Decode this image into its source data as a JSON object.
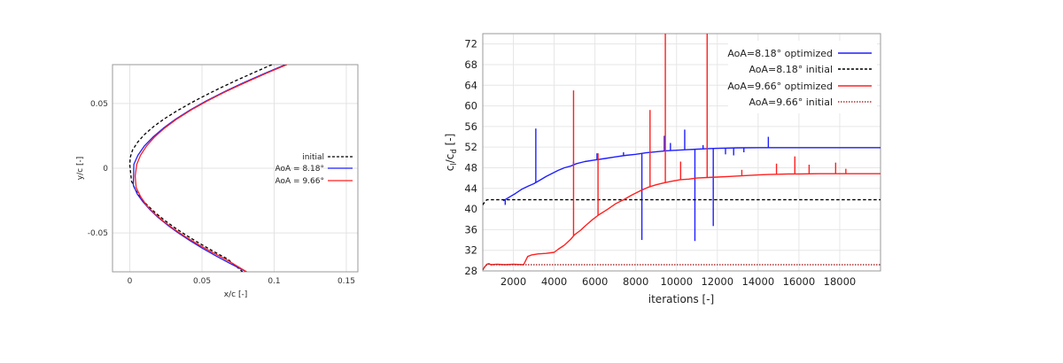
{
  "chart_data": [
    {
      "type": "line",
      "title": "",
      "xlabel": "x/c [-]",
      "ylabel": "y/c [-]",
      "xlim": [
        -0.012,
        0.158
      ],
      "ylim": [
        -0.08,
        0.08
      ],
      "x_ticks": [
        {
          "v": 0,
          "label": "0"
        },
        {
          "v": 0.05,
          "label": "0.05"
        },
        {
          "v": 0.1,
          "label": "0.1"
        },
        {
          "v": 0.15,
          "label": "0.15"
        }
      ],
      "y_ticks": [
        {
          "v": 0.05,
          "label": "0.05"
        },
        {
          "v": 0,
          "label": "0"
        },
        {
          "v": -0.05,
          "label": "-0.05"
        }
      ],
      "grid": true,
      "legend": "right",
      "series": [
        {
          "name": "initial",
          "color": "#000000",
          "dash": "dashed",
          "x": [
            0.0984,
            0.0862,
            0.0742,
            0.0627,
            0.0518,
            0.0416,
            0.0322,
            0.0237,
            0.0163,
            0.0101,
            0.0053,
            0.0019,
            0.0002,
            0.0,
            0.0012,
            0.0035,
            0.0069,
            0.0116,
            0.0173,
            0.0238,
            0.0312,
            0.0394,
            0.0482,
            0.0576,
            0.0676,
            0.0781
          ],
          "y": [
            0.08,
            0.074,
            0.068,
            0.062,
            0.056,
            0.05,
            0.044,
            0.038,
            0.032,
            0.026,
            0.02,
            0.014,
            0.008,
            0.002,
            -0.01,
            -0.016,
            -0.022,
            -0.028,
            -0.034,
            -0.04,
            -0.046,
            -0.052,
            -0.058,
            -0.064,
            -0.07,
            -0.08
          ]
        },
        {
          "name": "AoA = 8.18°",
          "color": "#1f1fff",
          "dash": "solid",
          "x": [
            0.1078,
            0.093,
            0.0787,
            0.0654,
            0.053,
            0.0418,
            0.0319,
            0.0233,
            0.016,
            0.01,
            0.0056,
            0.0028,
            0.0024,
            0.0052,
            0.0091,
            0.0139,
            0.0196,
            0.0262,
            0.0336,
            0.0418,
            0.0506,
            0.0601,
            0.0702,
            0.0808
          ],
          "y": [
            0.08,
            0.073,
            0.066,
            0.059,
            0.052,
            0.045,
            0.038,
            0.031,
            0.024,
            0.017,
            0.01,
            0.003,
            -0.013,
            -0.02,
            -0.026,
            -0.032,
            -0.038,
            -0.044,
            -0.05,
            -0.056,
            -0.062,
            -0.068,
            -0.074,
            -0.08
          ]
        },
        {
          "name": "AoA = 9.66°",
          "color": "#ff2020",
          "dash": "solid",
          "x": [
            0.1088,
            0.094,
            0.0797,
            0.0662,
            0.0538,
            0.0425,
            0.0326,
            0.0241,
            0.017,
            0.0115,
            0.0074,
            0.0048,
            0.0037,
            0.0044,
            0.0075,
            0.0118,
            0.0171,
            0.0234,
            0.0306,
            0.0387,
            0.0476,
            0.0572,
            0.0675,
            0.081
          ],
          "y": [
            0.08,
            0.073,
            0.066,
            0.059,
            0.052,
            0.045,
            0.038,
            0.031,
            0.024,
            0.017,
            0.01,
            0.003,
            -0.006,
            -0.015,
            -0.022,
            -0.029,
            -0.035,
            -0.041,
            -0.047,
            -0.053,
            -0.059,
            -0.065,
            -0.071,
            -0.08
          ]
        }
      ]
    },
    {
      "type": "line",
      "title": "",
      "xlabel": "iterations [-]",
      "ylabel": "cl/cd [-]",
      "xlim": [
        500,
        20000
      ],
      "ylim": [
        28,
        74
      ],
      "x_ticks": [
        2000,
        4000,
        6000,
        8000,
        10000,
        12000,
        14000,
        16000,
        18000
      ],
      "y_ticks": [
        28,
        32,
        36,
        40,
        44,
        48,
        52,
        56,
        60,
        64,
        68,
        72
      ],
      "grid": true,
      "legend": "top-right",
      "series": [
        {
          "name": "AoA=8.18° optimized",
          "color": "#1f1fff",
          "dash": "solid",
          "x": [
            1500,
            1800,
            2100,
            2400,
            2700,
            3000,
            3300,
            3600,
            3900,
            4200,
            4500,
            4800,
            5100,
            5500,
            6000,
            6500,
            7000,
            7500,
            8000,
            8500,
            9000,
            9500,
            10000,
            10500,
            11000,
            11500,
            12000,
            12500,
            13000,
            14000,
            15000,
            16000,
            17000,
            18000,
            19000,
            20000
          ],
          "y": [
            41.6,
            42.3,
            43.0,
            43.8,
            44.4,
            44.9,
            45.6,
            46.3,
            46.9,
            47.5,
            48.0,
            48.3,
            48.8,
            49.2,
            49.5,
            49.8,
            50.1,
            50.4,
            50.6,
            50.9,
            51.1,
            51.3,
            51.4,
            51.5,
            51.6,
            51.7,
            51.75,
            51.8,
            51.85,
            51.9,
            51.9,
            51.9,
            51.9,
            51.9,
            51.9,
            51.9
          ],
          "spikes": [
            [
              1600,
              40.8
            ],
            [
              3100,
              55.6
            ],
            [
              4950,
              49.2
            ],
            [
              6100,
              50.8
            ],
            [
              7400,
              51.0
            ],
            [
              8300,
              34.0
            ],
            [
              9400,
              54.2
            ],
            [
              9700,
              52.8
            ],
            [
              10400,
              55.4
            ],
            [
              10900,
              33.8
            ],
            [
              11300,
              52.4
            ],
            [
              11800,
              36.7
            ],
            [
              12400,
              50.6
            ],
            [
              12800,
              50.4
            ],
            [
              13300,
              51.0
            ],
            [
              14500,
              54.0
            ],
            [
              15500,
              51.9
            ]
          ]
        },
        {
          "name": "AoA=8.18° initial",
          "color": "#000000",
          "dash": "dashed",
          "x": [
            500,
            600,
            700,
            800,
            20000
          ],
          "y": [
            40.8,
            41.4,
            41.8,
            41.8,
            41.8
          ]
        },
        {
          "name": "AoA=9.66° optimized",
          "color": "#ff2020",
          "dash": "solid",
          "x": [
            500,
            600,
            700,
            800,
            900,
            1200,
            1600,
            2000,
            2500,
            2700,
            2900,
            3200,
            3600,
            4000,
            4200,
            4500,
            4800,
            5000,
            5300,
            5600,
            5900,
            6200,
            6600,
            7000,
            7400,
            7800,
            8200,
            8600,
            9000,
            9400,
            9800,
            10200,
            10600,
            11000,
            11500,
            12000,
            12500,
            13000,
            13500,
            14000,
            14500,
            15000,
            15500,
            16000,
            17000,
            18000,
            19000,
            20000
          ],
          "y": [
            28.2,
            28.8,
            29.3,
            29.4,
            29.2,
            29.3,
            29.2,
            29.3,
            29.2,
            30.8,
            31.1,
            31.3,
            31.4,
            31.6,
            32.2,
            33.0,
            34.1,
            35.0,
            35.9,
            37.0,
            38.0,
            38.9,
            39.9,
            41.0,
            41.8,
            42.7,
            43.5,
            44.2,
            44.7,
            45.1,
            45.4,
            45.7,
            45.8,
            46.0,
            46.1,
            46.2,
            46.3,
            46.4,
            46.5,
            46.6,
            46.7,
            46.75,
            46.8,
            46.8,
            46.85,
            46.85,
            46.85,
            46.85
          ],
          "spikes": [
            [
              4950,
              63.0
            ],
            [
              6150,
              50.8
            ],
            [
              8700,
              59.2
            ],
            [
              9450,
              74
            ],
            [
              10200,
              49.2
            ],
            [
              11500,
              74
            ],
            [
              13200,
              47.6
            ],
            [
              14900,
              48.8
            ],
            [
              15800,
              50.2
            ],
            [
              16500,
              48.6
            ],
            [
              17800,
              49.0
            ],
            [
              18300,
              47.8
            ]
          ]
        },
        {
          "name": "AoA=9.66° initial",
          "color": "#b03030",
          "dash": "dotted",
          "x": [
            500,
            600,
            700,
            800,
            900,
            20000
          ],
          "y": [
            28.2,
            28.8,
            29.2,
            29.3,
            29.2,
            29.2
          ]
        }
      ]
    }
  ]
}
